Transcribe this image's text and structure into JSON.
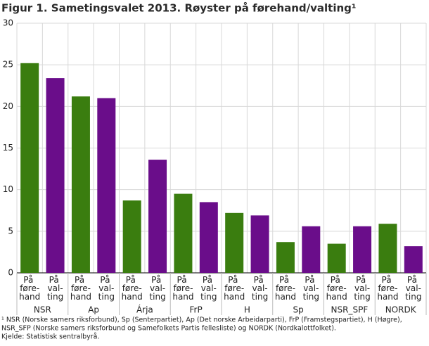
{
  "chart_data": {
    "type": "bar",
    "title": "Figur 1. Sametingsvalet 2013. Røyster på førehand/valting¹",
    "categories": [
      "NSR",
      "Ap",
      "Árja",
      "FrP",
      "H",
      "Sp",
      "NSR_SPF",
      "NORDK"
    ],
    "series": [
      {
        "name": "På føre-hand",
        "color": "#3a7d0f",
        "values": [
          25.2,
          21.2,
          8.7,
          9.5,
          7.2,
          3.7,
          3.5,
          5.9
        ]
      },
      {
        "name": "På val-ting",
        "color": "#6a0d8a",
        "values": [
          23.4,
          21.0,
          13.6,
          8.5,
          6.9,
          5.6,
          5.6,
          3.2
        ]
      }
    ],
    "ylim": [
      0,
      30
    ],
    "yticks": [
      0,
      5,
      10,
      15,
      20,
      25,
      30
    ],
    "grid": true,
    "footnotes": [
      "¹ NSR (Norske samers riksforbund), Sp (Senterpartiet),  Ap (Det norske Arbeidarparti), FrP (Framstegspartiet), H (Høgre),",
      "NSR_SFP (Norske samers riksforbund og Samefolkets Partis fellesliste) og NORDK (Nordkalottfolket).",
      "Kjelde: Statistisk sentralbyrå."
    ]
  }
}
